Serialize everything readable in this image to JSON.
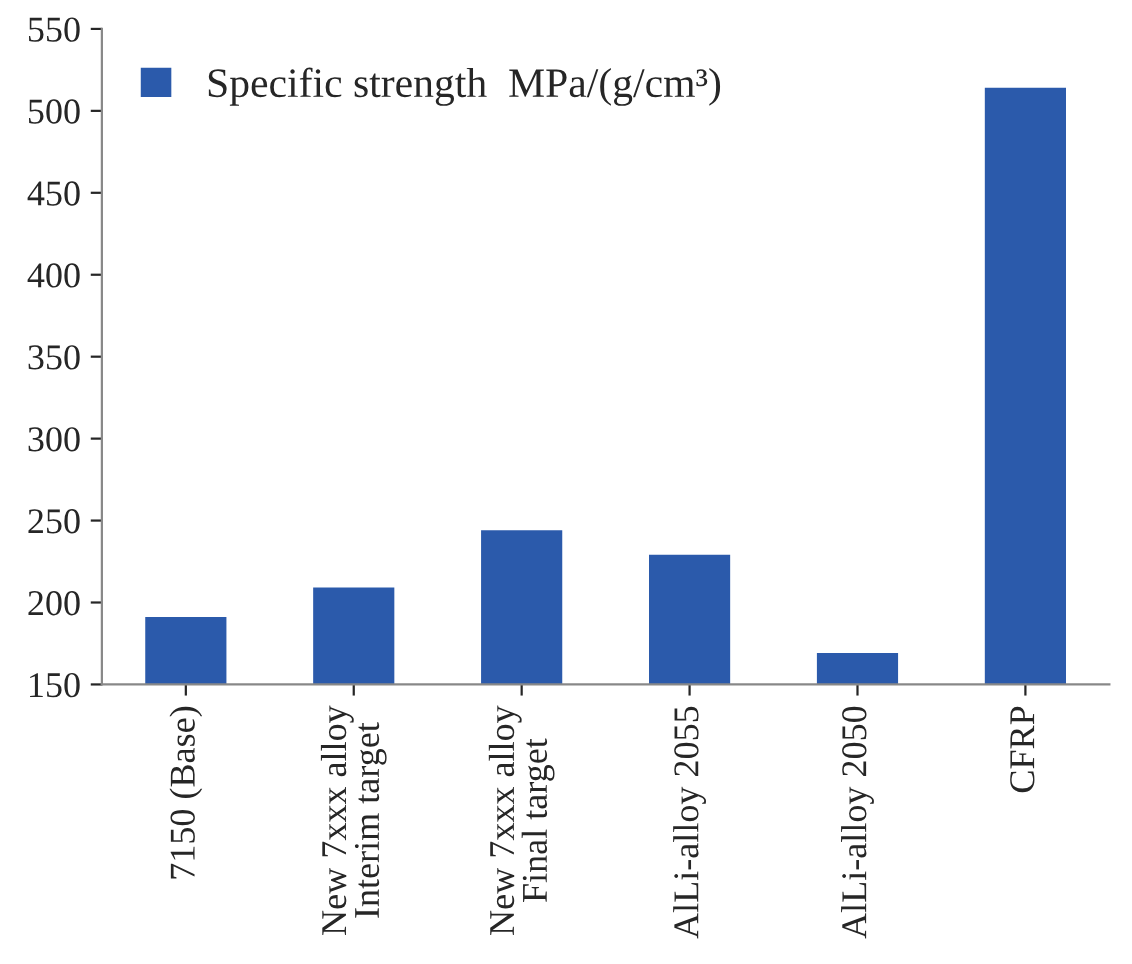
{
  "chart_data": {
    "type": "bar",
    "categories": [
      "7150 (Base)",
      "New 7xxx alloy\nInterim target",
      "New 7xxx alloy\nFinal target",
      "AlLi-alloy 2055",
      "AlLi-alloy 2050",
      "CFRP"
    ],
    "series": [
      {
        "name": "Specific strength  MPa/(g/cm³)",
        "color": "#2b5aab",
        "values": [
          192,
          210,
          245,
          230,
          170,
          515
        ]
      }
    ],
    "ylim": [
      150,
      550
    ],
    "yticks": [
      150,
      200,
      250,
      300,
      350,
      400,
      450,
      500,
      550
    ],
    "grid": false,
    "legend": "top left"
  }
}
